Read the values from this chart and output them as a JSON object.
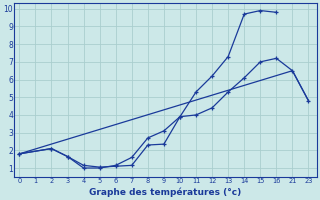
{
  "xlabel": "Graphe des températures (°c)",
  "background_color": "#cce8e8",
  "grid_color": "#aacece",
  "line_color": "#1a3a9a",
  "xlim": [
    -0.3,
    23.5
  ],
  "ylim": [
    0.5,
    10.3
  ],
  "xticks": [
    0,
    1,
    2,
    3,
    4,
    5,
    6,
    7,
    8,
    9,
    10,
    11,
    12,
    13,
    14,
    15,
    16,
    21,
    23
  ],
  "yticks": [
    1,
    2,
    3,
    4,
    5,
    6,
    7,
    8,
    9,
    10
  ],
  "line1_x": [
    0,
    2,
    3,
    4,
    5,
    6,
    7,
    8,
    9,
    10,
    11,
    12,
    13,
    14,
    15,
    16
  ],
  "line1_y": [
    1.8,
    2.1,
    1.65,
    1.15,
    1.05,
    1.1,
    1.15,
    2.3,
    2.35,
    3.9,
    5.3,
    6.2,
    7.3,
    9.7,
    9.9,
    9.8
  ],
  "line2_x": [
    0,
    2,
    3,
    4,
    5,
    6,
    7,
    8,
    9,
    10,
    11,
    12,
    13,
    14,
    15,
    16,
    21,
    23
  ],
  "line2_y": [
    1.8,
    2.1,
    1.65,
    1.0,
    1.0,
    1.15,
    1.6,
    2.7,
    3.1,
    3.9,
    4.0,
    4.4,
    5.3,
    6.1,
    7.0,
    7.2,
    6.5,
    4.8
  ],
  "line3_x": [
    0,
    21,
    23
  ],
  "line3_y": [
    1.8,
    6.5,
    4.8
  ]
}
